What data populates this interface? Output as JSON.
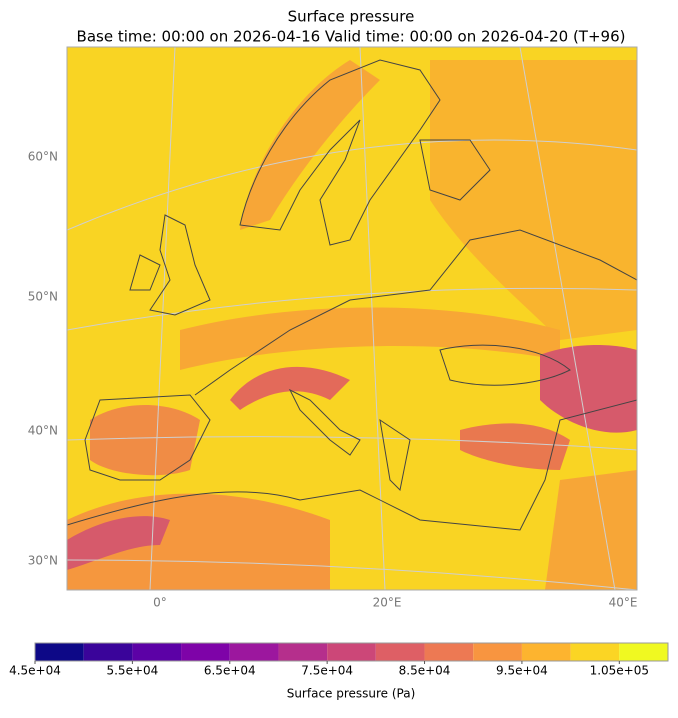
{
  "title": "Surface pressure",
  "subtitle": "Base time: 00:00 on 2026-04-16   Valid time: 00:00 on 2026-04-20 (T+96)",
  "map": {
    "lat_labels": [
      "60°N",
      "50°N",
      "40°N",
      "30°N"
    ],
    "lon_labels": [
      "0°",
      "20°E",
      "40°E"
    ]
  },
  "colorbar": {
    "label": "Surface pressure (Pa)",
    "levels": [
      45000,
      50000,
      55000,
      60000,
      65000,
      70000,
      75000,
      80000,
      85000,
      90000,
      95000,
      100000,
      105000,
      110000
    ],
    "colors": [
      "#0d0887",
      "#3a049a",
      "#5c01a6",
      "#7e03a8",
      "#9c179e",
      "#b52f8c",
      "#cc4778",
      "#de5f65",
      "#ed7953",
      "#f89540",
      "#fdb42f",
      "#fbd524",
      "#f0f921"
    ],
    "ticks": [
      {
        "value": 45000,
        "label": "4.5e+04"
      },
      {
        "value": 55000,
        "label": "5.5e+04"
      },
      {
        "value": 65000,
        "label": "6.5e+04"
      },
      {
        "value": 75000,
        "label": "7.5e+04"
      },
      {
        "value": 85000,
        "label": "8.5e+04"
      },
      {
        "value": 95000,
        "label": "9.5e+04"
      },
      {
        "value": 105000,
        "label": "1.05e+05"
      }
    ]
  }
}
